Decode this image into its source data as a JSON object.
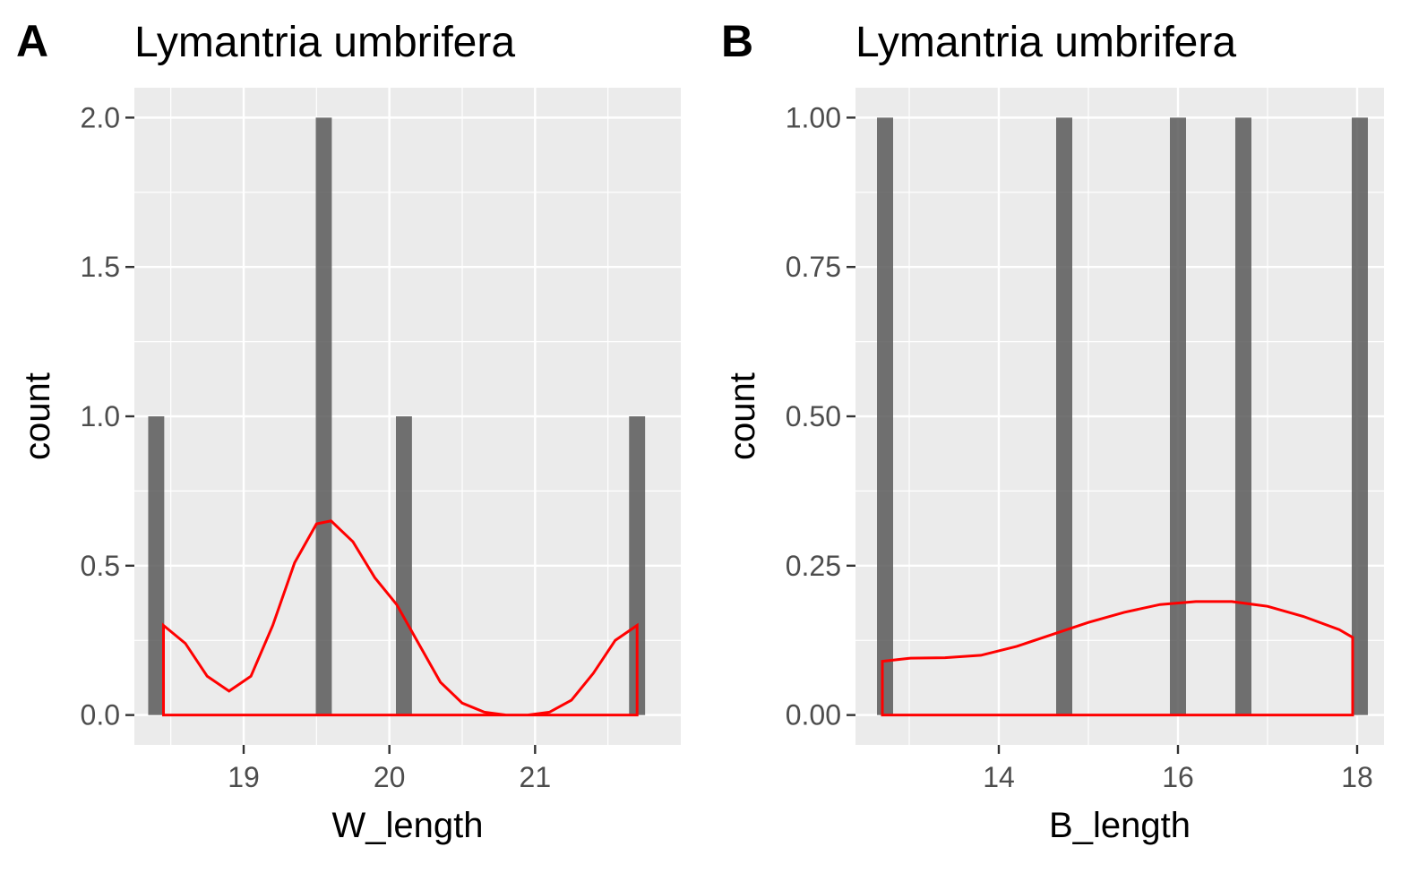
{
  "chart_data": [
    {
      "type": "bar",
      "tag": "A",
      "title": "Lymantria umbrifera",
      "xlabel": "W_length",
      "ylabel": "count",
      "xlim": [
        18.25,
        22.0
      ],
      "ylim": [
        -0.1,
        2.1
      ],
      "x_ticks": [
        19,
        20,
        21
      ],
      "x_tick_labels": [
        "19",
        "20",
        "21"
      ],
      "y_ticks": [
        0,
        0.5,
        1,
        1.5,
        2
      ],
      "y_tick_labels": [
        "0.0",
        "0.5",
        "1.0",
        "1.5",
        "2.0"
      ],
      "bar_width": 0.11,
      "bars": [
        {
          "x": 18.4,
          "count": 1
        },
        {
          "x": 19.55,
          "count": 2
        },
        {
          "x": 20.1,
          "count": 1
        },
        {
          "x": 21.7,
          "count": 1
        }
      ],
      "density_curve": {
        "color": "#ff0000",
        "x": [
          18.45,
          18.6,
          18.75,
          18.9,
          19.05,
          19.2,
          19.35,
          19.5,
          19.6,
          19.75,
          19.9,
          20.05,
          20.2,
          20.35,
          20.5,
          20.65,
          20.8,
          20.95,
          21.1,
          21.25,
          21.4,
          21.55,
          21.7
        ],
        "y": [
          0.3,
          0.24,
          0.13,
          0.08,
          0.13,
          0.3,
          0.51,
          0.64,
          0.65,
          0.58,
          0.46,
          0.37,
          0.24,
          0.11,
          0.04,
          0.01,
          0.0,
          0.0,
          0.01,
          0.05,
          0.14,
          0.25,
          0.3
        ]
      },
      "grid": true
    },
    {
      "type": "bar",
      "tag": "B",
      "title": "Lymantria umbrifera",
      "xlabel": "B_length",
      "ylabel": "count",
      "xlim": [
        12.4,
        18.3
      ],
      "ylim": [
        -0.05,
        1.05
      ],
      "x_ticks": [
        14,
        16,
        18
      ],
      "x_tick_labels": [
        "14",
        "16",
        "18"
      ],
      "y_ticks": [
        0,
        0.25,
        0.5,
        0.75,
        1
      ],
      "y_tick_labels": [
        "0.00",
        "0.25",
        "0.50",
        "0.75",
        "1.00"
      ],
      "bar_width": 0.18,
      "bars": [
        {
          "x": 12.73,
          "count": 1
        },
        {
          "x": 14.73,
          "count": 1
        },
        {
          "x": 16.0,
          "count": 1
        },
        {
          "x": 16.73,
          "count": 1
        },
        {
          "x": 18.03,
          "count": 1
        }
      ],
      "density_curve": {
        "color": "#ff0000",
        "x": [
          12.7,
          13.0,
          13.4,
          13.8,
          14.2,
          14.6,
          15.0,
          15.4,
          15.8,
          16.2,
          16.6,
          17.0,
          17.4,
          17.8,
          17.95
        ],
        "y": [
          0.09,
          0.095,
          0.096,
          0.1,
          0.115,
          0.135,
          0.155,
          0.172,
          0.185,
          0.19,
          0.19,
          0.182,
          0.165,
          0.143,
          0.13
        ]
      },
      "grid": true
    }
  ]
}
